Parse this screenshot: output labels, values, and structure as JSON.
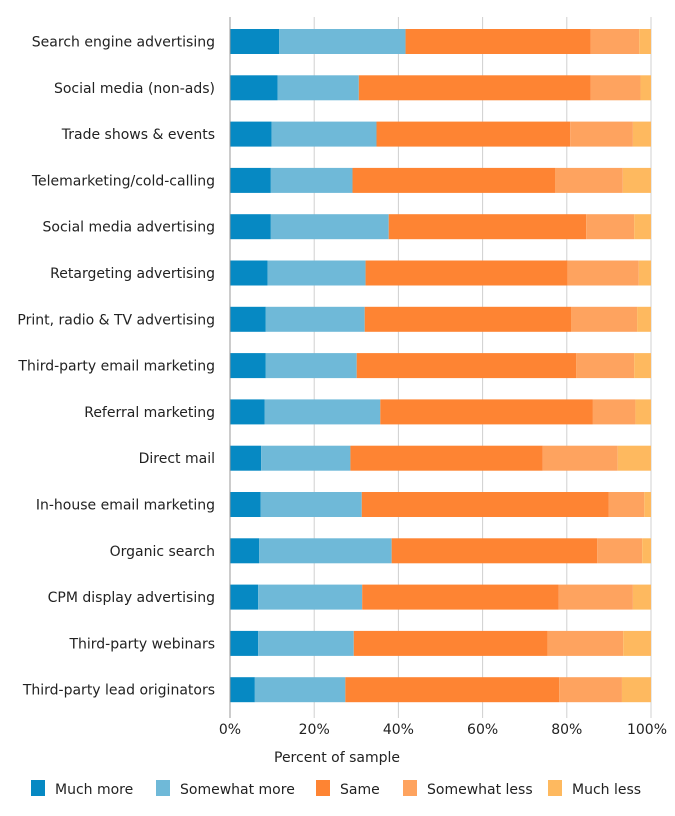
{
  "chart_data": {
    "type": "bar",
    "orientation": "horizontal",
    "stacked": true,
    "title": "",
    "xlabel": "Percent of sample",
    "ylabel": "",
    "xlim": [
      0,
      100
    ],
    "x_ticks": [
      "0%",
      "20%",
      "40%",
      "60%",
      "80%",
      "100%"
    ],
    "x_tick_values": [
      0,
      20,
      40,
      60,
      80,
      100
    ],
    "grid": true,
    "legend_position": "bottom",
    "categories": [
      "Search engine advertising",
      "Social media (non-ads)",
      "Trade shows & events",
      "Telemarketing/cold-calling",
      "Social media advertising",
      "Retargeting advertising",
      "Print, radio & TV advertising",
      "Third-party email marketing",
      "Referral marketing",
      "Direct mail",
      "In-house email marketing",
      "Organic search",
      "CPM display advertising",
      "Third-party webinars",
      "Third-party lead originators"
    ],
    "series": [
      {
        "name": "Much more",
        "color": "#0689c3",
        "values": [
          11.7,
          11.3,
          9.9,
          9.7,
          9.7,
          8.9,
          8.5,
          8.5,
          8.2,
          7.4,
          7.3,
          6.9,
          6.7,
          6.7,
          5.9
        ]
      },
      {
        "name": "Somewhat more",
        "color": "#6fb9d8",
        "values": [
          30.0,
          19.3,
          24.9,
          19.4,
          28.0,
          23.3,
          23.5,
          21.6,
          27.5,
          21.2,
          24.0,
          31.5,
          24.7,
          22.7,
          21.5
        ]
      },
      {
        "name": "Same",
        "color": "#fe8433",
        "values": [
          44.0,
          55.1,
          46.0,
          48.1,
          46.9,
          48.0,
          49.0,
          52.1,
          50.5,
          45.7,
          58.6,
          48.8,
          46.7,
          46.0,
          50.8
        ]
      },
      {
        "name": "Somewhat less",
        "color": "#fea35f",
        "values": [
          11.5,
          11.8,
          14.9,
          16.1,
          11.4,
          16.9,
          15.7,
          13.8,
          10.1,
          17.8,
          8.5,
          10.7,
          17.6,
          18.0,
          14.9
        ]
      },
      {
        "name": "Much less",
        "color": "#feb95f",
        "values": [
          2.8,
          2.5,
          4.3,
          6.7,
          4.0,
          2.9,
          3.3,
          4.0,
          3.7,
          7.9,
          1.6,
          2.1,
          4.3,
          6.6,
          6.9
        ]
      }
    ]
  }
}
